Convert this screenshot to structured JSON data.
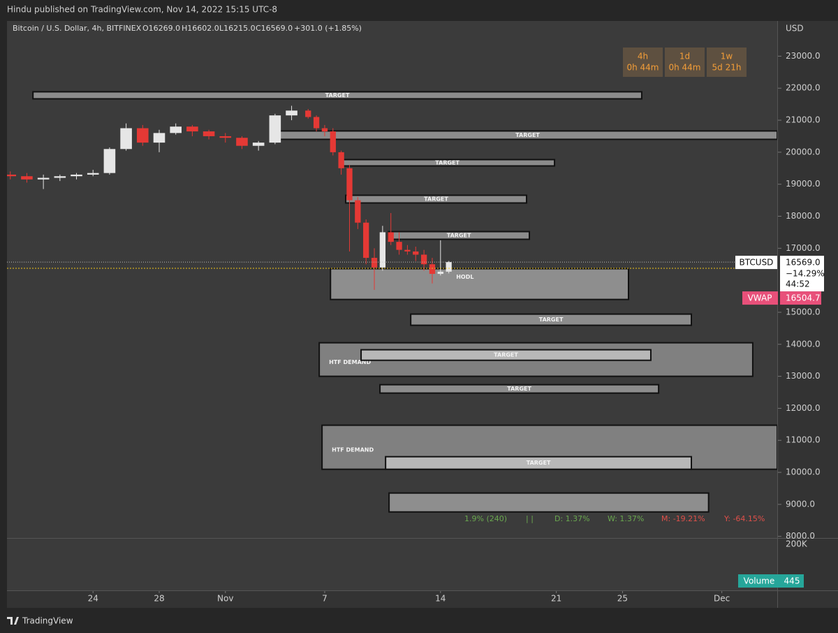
{
  "header": {
    "text": "Hindu published on TradingView.com, Nov 14, 2022 15:15 UTC-8"
  },
  "legend": {
    "symbol": "Bitcoin / U.S. Dollar, 4h, BITFINEX",
    "open": "O16269.0",
    "high": "H16602.0",
    "low": "L16215.0",
    "close": "C16569.0",
    "change": "+301.0 (+1.85%)"
  },
  "timers": [
    {
      "interval": "4h",
      "remaining": "0h 44m"
    },
    {
      "interval": "1d",
      "remaining": "0h 44m"
    },
    {
      "interval": "1w",
      "remaining": "5d 21h"
    }
  ],
  "footer": {
    "brand": "TradingView"
  },
  "chart_data": {
    "type": "candlestick",
    "y_unit": "USD",
    "x": [
      19,
      20,
      21,
      22,
      23,
      24,
      25,
      26,
      27,
      28,
      29,
      30,
      31,
      32,
      33,
      34,
      35,
      36,
      37,
      37.5,
      38,
      38.5,
      39,
      39.5,
      40,
      40.5,
      41,
      41.5,
      42,
      42.5,
      43,
      43.5,
      44,
      44.5,
      45,
      45.5
    ],
    "open": [
      19300,
      19250,
      19150,
      19200,
      19250,
      19300,
      19350,
      20100,
      20750,
      20300,
      20600,
      20800,
      20650,
      20500,
      20450,
      20200,
      20300,
      21150,
      21300,
      21100,
      20750,
      20650,
      20000,
      19500,
      18500,
      17800,
      16700,
      16400,
      17500,
      17200,
      16950,
      16900,
      16800,
      16500,
      16200,
      16269
    ],
    "high": [
      19400,
      19350,
      19300,
      19300,
      19350,
      19450,
      20150,
      20900,
      20850,
      20700,
      20900,
      20850,
      20700,
      20600,
      20500,
      20350,
      21200,
      21450,
      21350,
      21150,
      20850,
      20750,
      20050,
      19600,
      18600,
      17900,
      17000,
      17700,
      18100,
      17500,
      17100,
      17050,
      16950,
      16700,
      17250,
      16602
    ],
    "low": [
      19150,
      19050,
      18850,
      19100,
      19150,
      19250,
      19300,
      20050,
      20200,
      20000,
      20550,
      20500,
      20400,
      20300,
      20100,
      20050,
      20250,
      21000,
      21050,
      20650,
      20500,
      19900,
      19300,
      16900,
      17600,
      16500,
      15700,
      16300,
      17100,
      16800,
      16800,
      16600,
      16300,
      15900,
      16150,
      16215
    ],
    "close": [
      19250,
      19150,
      19200,
      19250,
      19300,
      19350,
      20100,
      20750,
      20300,
      20600,
      20800,
      20650,
      20500,
      20450,
      20200,
      20300,
      21150,
      21300,
      21100,
      20750,
      20650,
      20000,
      19500,
      18500,
      17800,
      16700,
      16400,
      17500,
      17200,
      16950,
      16900,
      16800,
      16500,
      16200,
      16268,
      16569
    ],
    "up_color": "#e6e6e6",
    "down_color": "#e53935",
    "xlim": [
      18.8,
      65.35
    ],
    "ylim": [
      7950,
      24100
    ],
    "xticks": [
      {
        "value": 24,
        "label": "24"
      },
      {
        "value": 28,
        "label": "28"
      },
      {
        "value": 32,
        "label": "Nov"
      },
      {
        "value": 38,
        "label": "7"
      },
      {
        "value": 45,
        "label": "14"
      },
      {
        "value": 52,
        "label": "21"
      },
      {
        "value": 56,
        "label": "25"
      },
      {
        "value": 62,
        "label": "Dec"
      }
    ],
    "yticks": [
      {
        "value": 8000,
        "label": "8000.0"
      },
      {
        "value": 9000,
        "label": "9000.0"
      },
      {
        "value": 10000,
        "label": "10000.0"
      },
      {
        "value": 11000,
        "label": "11000.0"
      },
      {
        "value": 12000,
        "label": "12000.0"
      },
      {
        "value": 13000,
        "label": "13000.0"
      },
      {
        "value": 14000,
        "label": "14000.0"
      },
      {
        "value": 15000,
        "label": "15000.0"
      },
      {
        "value": 17000,
        "label": "17000.0"
      },
      {
        "value": 18000,
        "label": "18000.0"
      },
      {
        "value": 19000,
        "label": "19000.0"
      },
      {
        "value": 20000,
        "label": "20000.0"
      },
      {
        "value": 21000,
        "label": "21000.0"
      },
      {
        "value": 22000,
        "label": "22000.0"
      },
      {
        "value": 23000,
        "label": "23000.0"
      }
    ],
    "zones": [
      {
        "label": "TARGET",
        "x0": 20.37,
        "x1": 57.16,
        "y0": 21668,
        "y1": 21887,
        "color": "#8c8c8c",
        "label_align": "center"
      },
      {
        "label": "TARGET",
        "x0": 35.18,
        "x1": 65.35,
        "y0": 20402,
        "y1": 20664,
        "color": "#8c8c8c",
        "label_align": "center"
      },
      {
        "label": "TARGET",
        "x0": 38.94,
        "x1": 51.89,
        "y0": 19572,
        "y1": 19769,
        "color": "#8c8c8c",
        "label_align": "center"
      },
      {
        "label": "TARGET",
        "x0": 39.27,
        "x1": 50.2,
        "y0": 18415,
        "y1": 18655,
        "color": "#8c8c8c",
        "label_align": "center"
      },
      {
        "label": "TARGET",
        "x0": 41.85,
        "x1": 50.37,
        "y0": 17280,
        "y1": 17520,
        "color": "#8c8c8c",
        "label_align": "center"
      },
      {
        "label": "HODL",
        "x0": 38.35,
        "x1": 56.36,
        "y0": 15400,
        "y1": 16362,
        "color": "#8e8e8e",
        "label_align": "top-left"
      },
      {
        "label": "TARGET",
        "x0": 43.2,
        "x1": 60.16,
        "y0": 14594,
        "y1": 14943,
        "color": "#8c8c8c",
        "label_align": "center"
      },
      {
        "label": "HTF DEMAND",
        "x0": 37.67,
        "x1": 63.87,
        "y0": 13000,
        "y1": 14048,
        "color": "#808080",
        "label_align": "left"
      },
      {
        "label": "TARGET",
        "x0": 40.2,
        "x1": 57.71,
        "y0": 13500,
        "y1": 13830,
        "color": "#b8b8b8",
        "label_align": "center"
      },
      {
        "label": "TARGET",
        "x0": 41.34,
        "x1": 58.18,
        "y0": 12476,
        "y1": 12738,
        "color": "#8c8c8c",
        "label_align": "center"
      },
      {
        "label": "HTF DEMAND",
        "x0": 37.84,
        "x1": 65.35,
        "y0": 10096,
        "y1": 11472,
        "color": "#808080",
        "label_align": "left"
      },
      {
        "label": "TARGET",
        "x0": 41.68,
        "x1": 60.16,
        "y0": 10096,
        "y1": 10489,
        "color": "#b8b8b8",
        "label_align": "center"
      },
      {
        "x0": 41.89,
        "x1": 61.2,
        "y0": 8764,
        "y1": 9354,
        "color": "#8e8e8e"
      }
    ],
    "last_price": {
      "name": "BTCUSD",
      "value": 16569,
      "value_label": "16569.0",
      "change": "−14.29%",
      "countdown": "44:52"
    },
    "vwap": {
      "name": "VWAP",
      "value": 16504.7,
      "color": "#f0c419"
    },
    "stats": [
      {
        "text": "1.9%  (240)",
        "color": "#6aa84f"
      },
      {
        "text": "| |",
        "color": "#6aa84f"
      },
      {
        "text": "D: 1.37%",
        "color": "#6aa84f"
      },
      {
        "text": "W: 1.37%",
        "color": "#6aa84f"
      },
      {
        "text": "M: -19.21%",
        "color": "#e0504a"
      },
      {
        "text": "Y: -64.15%",
        "color": "#e0504a"
      }
    ],
    "volume": {
      "name": "Volume",
      "value": 445,
      "axis_label": "200K"
    }
  }
}
